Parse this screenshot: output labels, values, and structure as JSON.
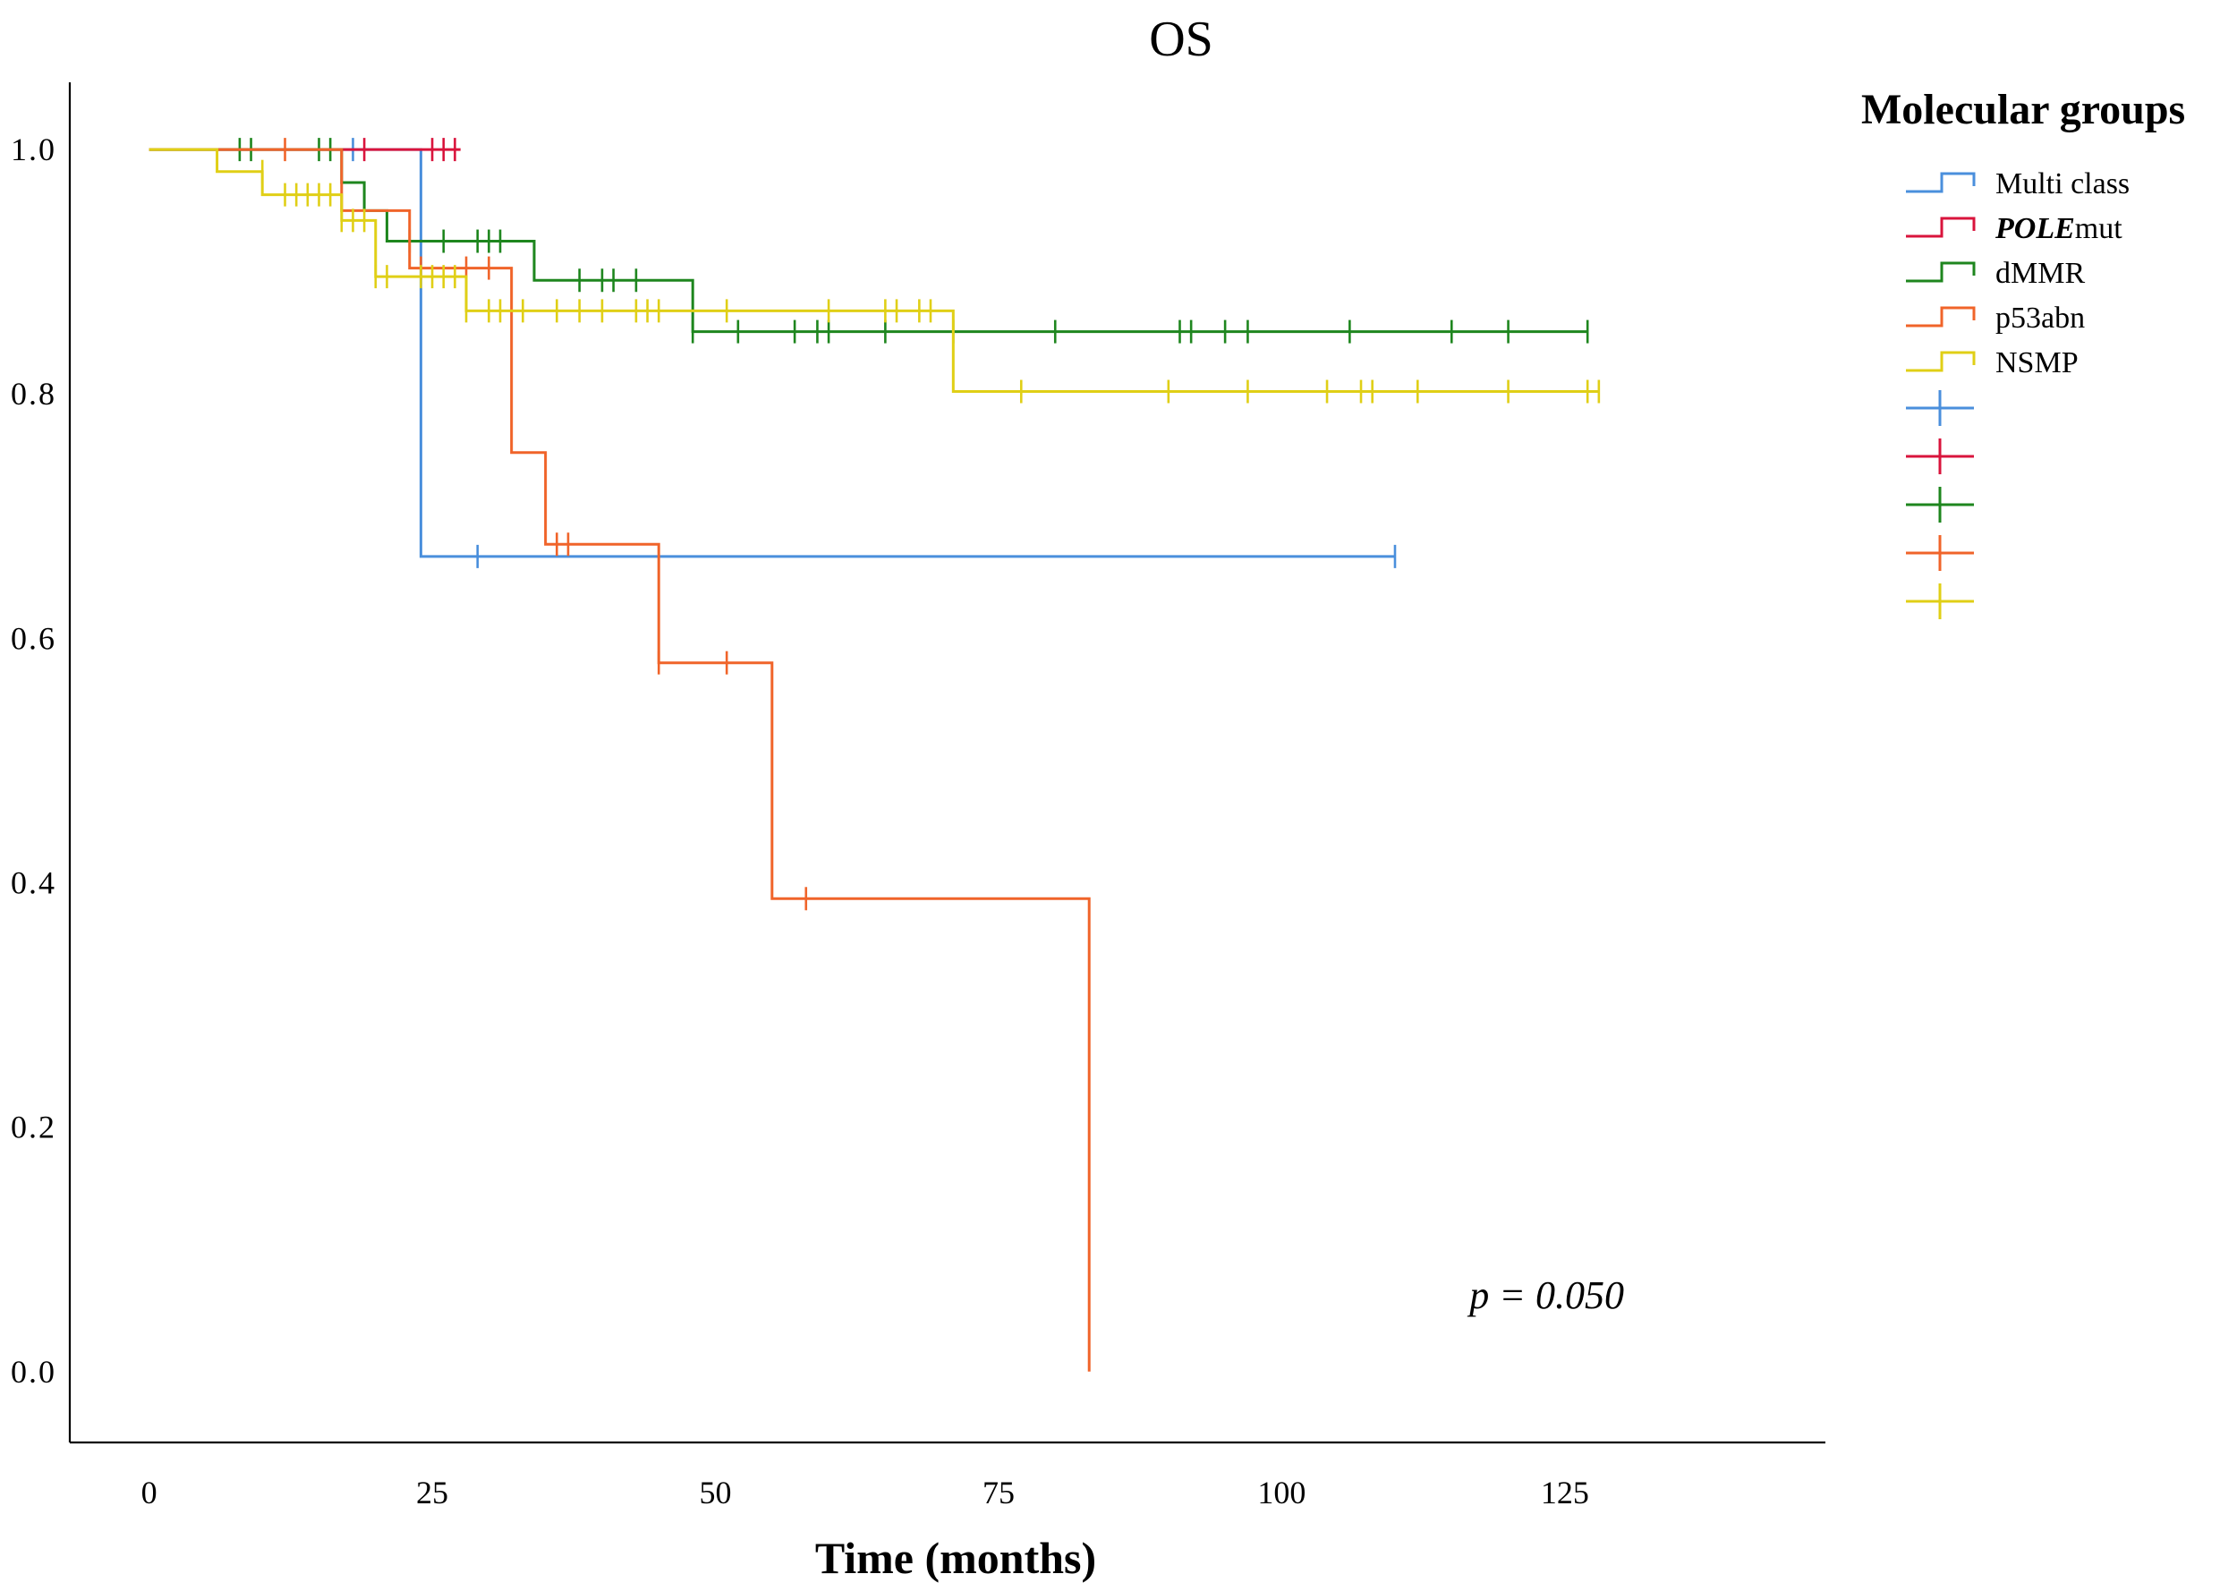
{
  "chart_data": {
    "type": "line",
    "subtype": "kaplan-meier",
    "title": "OS",
    "xlabel": "Time (months)",
    "ylabel": "",
    "xlim": [
      -7,
      148
    ],
    "ylim": [
      -0.058,
      1.055
    ],
    "x_ticks": [
      0,
      25,
      50,
      75,
      100,
      125
    ],
    "x_tick_labels": [
      "0",
      "25",
      "50",
      "75",
      "100",
      "125"
    ],
    "y_ticks": [
      0,
      0.2,
      0.4,
      0.6,
      0.8,
      1.0
    ],
    "y_tick_labels": [
      "0.0",
      "0.2",
      "0.4",
      "0.6",
      "0.8",
      "1.0"
    ],
    "grid": false,
    "annotation": "p = 0.050",
    "legend": {
      "title": "Molecular groups",
      "placement": "right",
      "entries": [
        {
          "prefix": "Multi class",
          "suffix": "",
          "color": "#4a8fdc"
        },
        {
          "prefix": "POLE",
          "suffix": "mut",
          "color": "#d9143c"
        },
        {
          "prefix": "dMMR",
          "suffix": "",
          "color": "#1e861e"
        },
        {
          "prefix": "p53abn",
          "suffix": "",
          "color": "#f0642a"
        },
        {
          "prefix": "NSMP",
          "suffix": "",
          "color": "#e0cf16"
        }
      ],
      "censor_colors": [
        "#4a8fdc",
        "#d9143c",
        "#1e861e",
        "#f0642a",
        "#e0cf16"
      ]
    },
    "series": [
      {
        "name": "Multi class",
        "color": "#4a8fdc",
        "steps": [
          [
            0,
            1.0
          ],
          [
            24,
            0.667
          ],
          [
            110,
            0.667
          ]
        ],
        "censored": [
          [
            18,
            1.0
          ],
          [
            29,
            0.667
          ],
          [
            110,
            0.667
          ]
        ]
      },
      {
        "name": "POLEmut",
        "color": "#d9143c",
        "steps": [
          [
            0,
            1.0
          ],
          [
            27.5,
            1.0
          ]
        ],
        "censored": [
          [
            19,
            1.0
          ],
          [
            25,
            1.0
          ],
          [
            26,
            1.0
          ],
          [
            27,
            1.0
          ]
        ]
      },
      {
        "name": "dMMR",
        "color": "#1e861e",
        "steps": [
          [
            0,
            1.0
          ],
          [
            17,
            0.973
          ],
          [
            19,
            0.95
          ],
          [
            21,
            0.925
          ],
          [
            34,
            0.893
          ],
          [
            48,
            0.851
          ],
          [
            127,
            0.851
          ]
        ],
        "censored": [
          [
            8,
            1.0
          ],
          [
            9,
            1.0
          ],
          [
            15,
            1.0
          ],
          [
            16,
            1.0
          ],
          [
            23,
            0.925
          ],
          [
            26,
            0.925
          ],
          [
            29,
            0.925
          ],
          [
            30,
            0.925
          ],
          [
            31,
            0.925
          ],
          [
            38,
            0.893
          ],
          [
            40,
            0.893
          ],
          [
            41,
            0.893
          ],
          [
            43,
            0.893
          ],
          [
            48,
            0.851
          ],
          [
            52,
            0.851
          ],
          [
            57,
            0.851
          ],
          [
            59,
            0.851
          ],
          [
            60,
            0.851
          ],
          [
            65,
            0.851
          ],
          [
            71,
            0.851
          ],
          [
            80,
            0.851
          ],
          [
            91,
            0.851
          ],
          [
            92,
            0.851
          ],
          [
            95,
            0.851
          ],
          [
            97,
            0.851
          ],
          [
            106,
            0.851
          ],
          [
            115,
            0.851
          ],
          [
            120,
            0.851
          ],
          [
            127,
            0.851
          ]
        ]
      },
      {
        "name": "p53abn",
        "color": "#f0642a",
        "steps": [
          [
            0,
            1.0
          ],
          [
            17,
            0.95
          ],
          [
            23,
            0.903
          ],
          [
            32,
            0.752
          ],
          [
            35,
            0.677
          ],
          [
            45,
            0.58
          ],
          [
            55,
            0.387
          ],
          [
            83,
            0.387
          ],
          [
            83,
            0.0
          ]
        ],
        "censored": [
          [
            12,
            1.0
          ],
          [
            24,
            0.903
          ],
          [
            28,
            0.903
          ],
          [
            30,
            0.903
          ],
          [
            36,
            0.677
          ],
          [
            37,
            0.677
          ],
          [
            45,
            0.58
          ],
          [
            51,
            0.58
          ],
          [
            58,
            0.387
          ]
        ]
      },
      {
        "name": "NSMP",
        "color": "#e0cf16",
        "steps": [
          [
            0,
            1.0
          ],
          [
            6,
            0.982
          ],
          [
            10,
            0.963
          ],
          [
            17,
            0.942
          ],
          [
            20,
            0.896
          ],
          [
            28,
            0.868
          ],
          [
            71,
            0.868
          ],
          [
            71,
            0.802
          ],
          [
            128,
            0.802
          ]
        ],
        "censored": [
          [
            10,
            0.982
          ],
          [
            12,
            0.963
          ],
          [
            13,
            0.963
          ],
          [
            14,
            0.963
          ],
          [
            15,
            0.963
          ],
          [
            16,
            0.963
          ],
          [
            17,
            0.942
          ],
          [
            18,
            0.942
          ],
          [
            19,
            0.942
          ],
          [
            20,
            0.896
          ],
          [
            21,
            0.896
          ],
          [
            24,
            0.896
          ],
          [
            25,
            0.896
          ],
          [
            26,
            0.896
          ],
          [
            27,
            0.896
          ],
          [
            28,
            0.868
          ],
          [
            30,
            0.868
          ],
          [
            31,
            0.868
          ],
          [
            33,
            0.868
          ],
          [
            36,
            0.868
          ],
          [
            38,
            0.868
          ],
          [
            40,
            0.868
          ],
          [
            43,
            0.868
          ],
          [
            44,
            0.868
          ],
          [
            45,
            0.868
          ],
          [
            51,
            0.868
          ],
          [
            60,
            0.868
          ],
          [
            65,
            0.868
          ],
          [
            66,
            0.868
          ],
          [
            68,
            0.868
          ],
          [
            69,
            0.868
          ],
          [
            77,
            0.802
          ],
          [
            90,
            0.802
          ],
          [
            97,
            0.802
          ],
          [
            104,
            0.802
          ],
          [
            107,
            0.802
          ],
          [
            108,
            0.802
          ],
          [
            112,
            0.802
          ],
          [
            120,
            0.802
          ],
          [
            127,
            0.802
          ],
          [
            128,
            0.802
          ]
        ]
      }
    ]
  }
}
